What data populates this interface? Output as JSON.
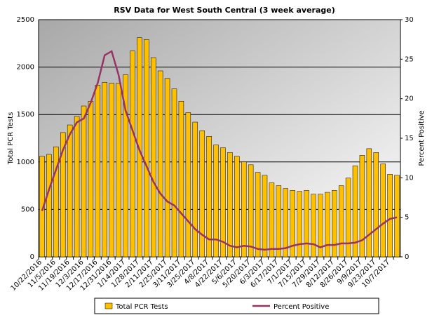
{
  "chart_data": {
    "type": "bar-line",
    "title": "RSV Data for West South Central (3 week average)",
    "y_label": "Total PCR Tests",
    "y2_label": "Percent Positive",
    "categories": [
      "10/22/2016",
      null,
      "11/5/2016",
      null,
      "11/19/2016",
      null,
      "12/3/2016",
      null,
      "12/17/2016",
      null,
      "12/31/2016",
      null,
      "1/14/2017",
      null,
      "1/28/2017",
      null,
      "2/11/2017",
      null,
      "2/25/2017",
      null,
      "3/11/2017",
      null,
      "3/25/2017",
      null,
      "4/8/2017",
      null,
      "4/22/2017",
      null,
      "5/6/2017",
      null,
      "5/20/2017",
      null,
      "6/3/2017",
      null,
      "6/17/2017",
      null,
      "7/1/2017",
      null,
      "7/15/2017",
      null,
      "7/29/2017",
      null,
      "8/12/2017",
      null,
      "8/26/2017",
      null,
      "9/9/2017",
      null,
      "9/23/2017",
      null,
      "10/7/2017",
      null
    ],
    "series": [
      {
        "name": "Total PCR Tests",
        "color": "#ffc000",
        "axis": "y",
        "values": [
          1060,
          1080,
          1160,
          1310,
          1390,
          1480,
          1590,
          1640,
          1810,
          1840,
          1830,
          1830,
          1920,
          2170,
          2310,
          2290,
          2100,
          1960,
          1880,
          1770,
          1640,
          1520,
          1420,
          1330,
          1270,
          1180,
          1150,
          1100,
          1060,
          1000,
          970,
          890,
          860,
          780,
          750,
          720,
          700,
          690,
          700,
          660,
          660,
          680,
          700,
          750,
          830,
          960,
          1070,
          1140,
          1100,
          980,
          870,
          860
        ]
      },
      {
        "name": "Percent Positive",
        "color": "#993366",
        "axis": "y2",
        "values": [
          5.8,
          8.5,
          11,
          13.5,
          15.5,
          17,
          17.5,
          19.5,
          22,
          25.5,
          26,
          23,
          18.5,
          16,
          13.5,
          11.5,
          9.5,
          8,
          7,
          6.5,
          5.5,
          4.5,
          3.5,
          2.8,
          2.2,
          2.2,
          1.9,
          1.4,
          1.2,
          1.4,
          1.3,
          1,
          0.9,
          1,
          1,
          1.1,
          1.4,
          1.6,
          1.7,
          1.6,
          1.2,
          1.5,
          1.5,
          1.7,
          1.7,
          1.8,
          2.1,
          2.8,
          3.5,
          4.2,
          4.8,
          5
        ]
      }
    ],
    "ylim": [
      0,
      2500
    ],
    "yticks": [
      0,
      500,
      1000,
      1500,
      2000,
      2500
    ],
    "y2lim": [
      0,
      30
    ],
    "y2ticks": [
      0,
      5,
      10,
      15,
      20,
      25,
      30
    ],
    "grid": true,
    "legend": "bottom"
  }
}
